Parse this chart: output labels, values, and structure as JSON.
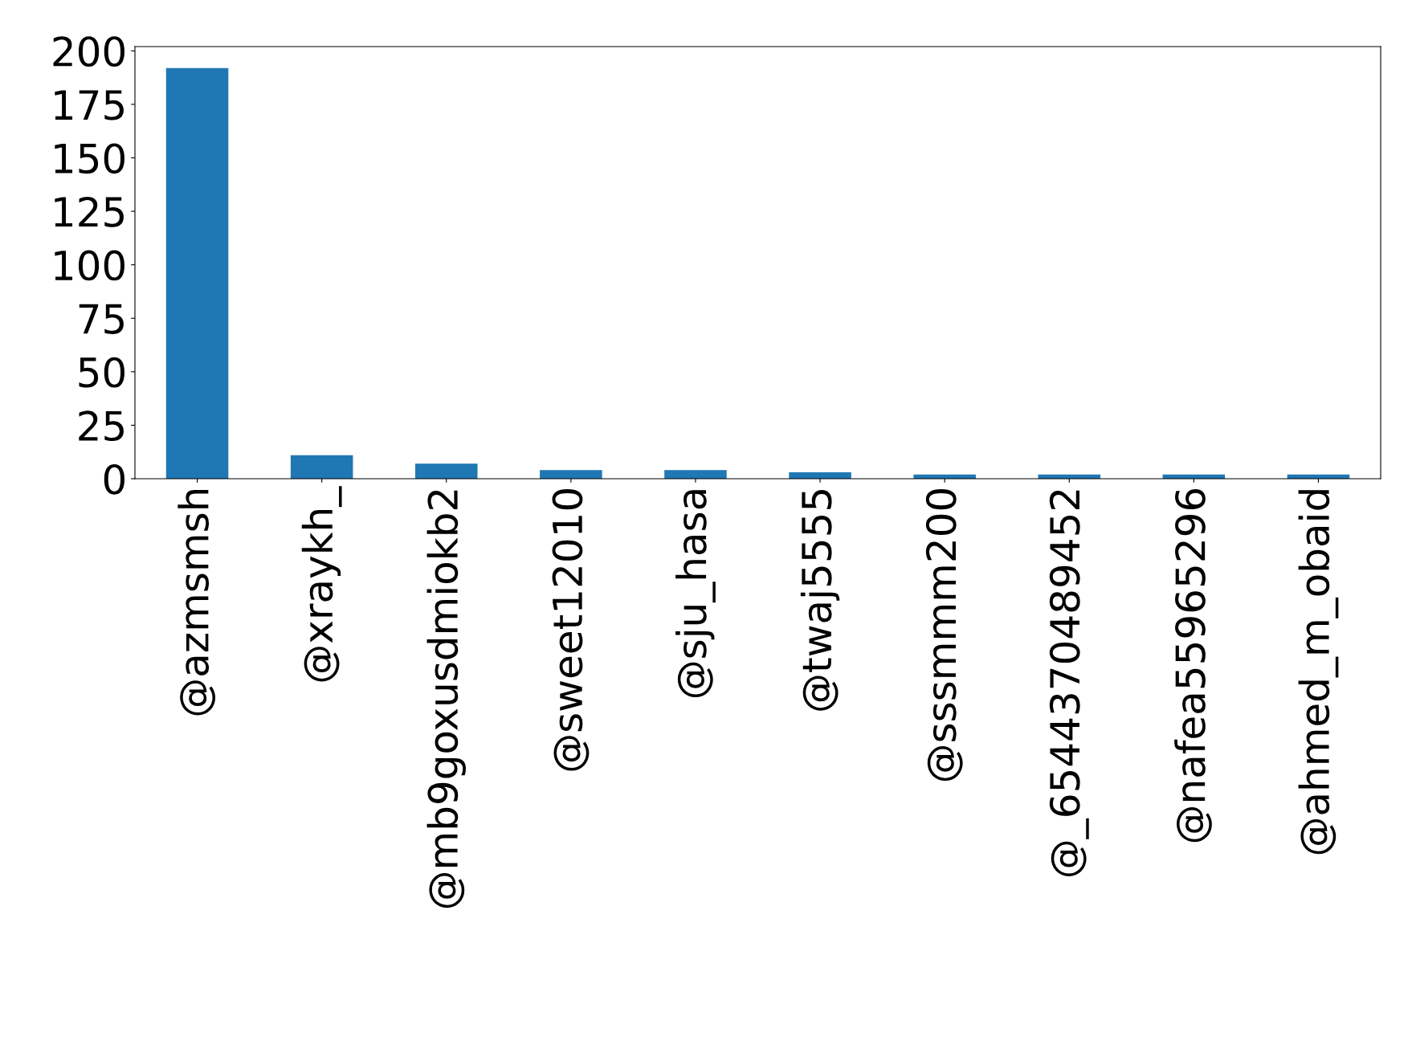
{
  "chart_data": {
    "type": "bar",
    "categories": [
      "@azmsmsh",
      "@xraykh_",
      "@mb9goxusdmiokb2",
      "@sweet12010",
      "@sju_hasa",
      "@twaj5555",
      "@sssmmm200",
      "@_6544370489452",
      "@nafea55965296",
      "@ahmed_m_obaid"
    ],
    "values": [
      192,
      11,
      7,
      4,
      4,
      3,
      2,
      2,
      2,
      2
    ],
    "color": "#1f77b4",
    "ylim": [
      0,
      202
    ],
    "yticks": [
      0,
      25,
      50,
      75,
      100,
      125,
      150,
      175,
      200
    ],
    "grid": false,
    "legend": false
  }
}
